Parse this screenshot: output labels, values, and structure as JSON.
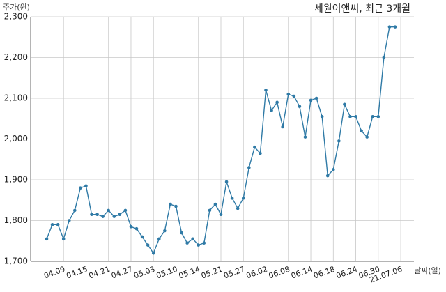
{
  "chart_data": {
    "type": "line",
    "title": "세원이앤씨, 최근 3개월",
    "ylabel": "주가(원)",
    "xlabel": "날짜(일)",
    "ylim": [
      1700,
      2300
    ],
    "yticks": [
      1700,
      1800,
      1900,
      2000,
      2100,
      2200,
      2300
    ],
    "ytick_labels": [
      "1,700",
      "1,800",
      "1,900",
      "2,000",
      "2,100",
      "2,200",
      "2,300"
    ],
    "xtick_labels": [
      "04.09",
      "04.15",
      "04.21",
      "04.27",
      "05.03",
      "05.10",
      "05.14",
      "05.21",
      "05.27",
      "06.02",
      "06.08",
      "06.14",
      "06.18",
      "06.24",
      "06.30",
      "21.07.06"
    ],
    "xtick_index": [
      3,
      7,
      11,
      15,
      19,
      23,
      27,
      31,
      35,
      39,
      43,
      47,
      51,
      55,
      59,
      63
    ],
    "grid": true,
    "line_color": "#2f7aa6",
    "series": [
      {
        "values": [
          1755,
          1790,
          1790,
          1755,
          1800,
          1825,
          1880,
          1885,
          1815,
          1815,
          1810,
          1825,
          1810,
          1815,
          1825,
          1785,
          1780,
          1760,
          1740,
          1720,
          1755,
          1775,
          1840,
          1835,
          1770,
          1745,
          1755,
          1740,
          1745,
          1825,
          1840,
          1815,
          1895,
          1855,
          1830,
          1855,
          1930,
          1980,
          1965,
          2120,
          2070,
          2090,
          2030,
          2110,
          2105,
          2080,
          2005,
          2095,
          2100,
          2055,
          1910,
          1925,
          1995,
          2085,
          2055,
          2055,
          2020,
          2005,
          2055,
          2055,
          2200,
          2275,
          2275
        ]
      }
    ]
  }
}
